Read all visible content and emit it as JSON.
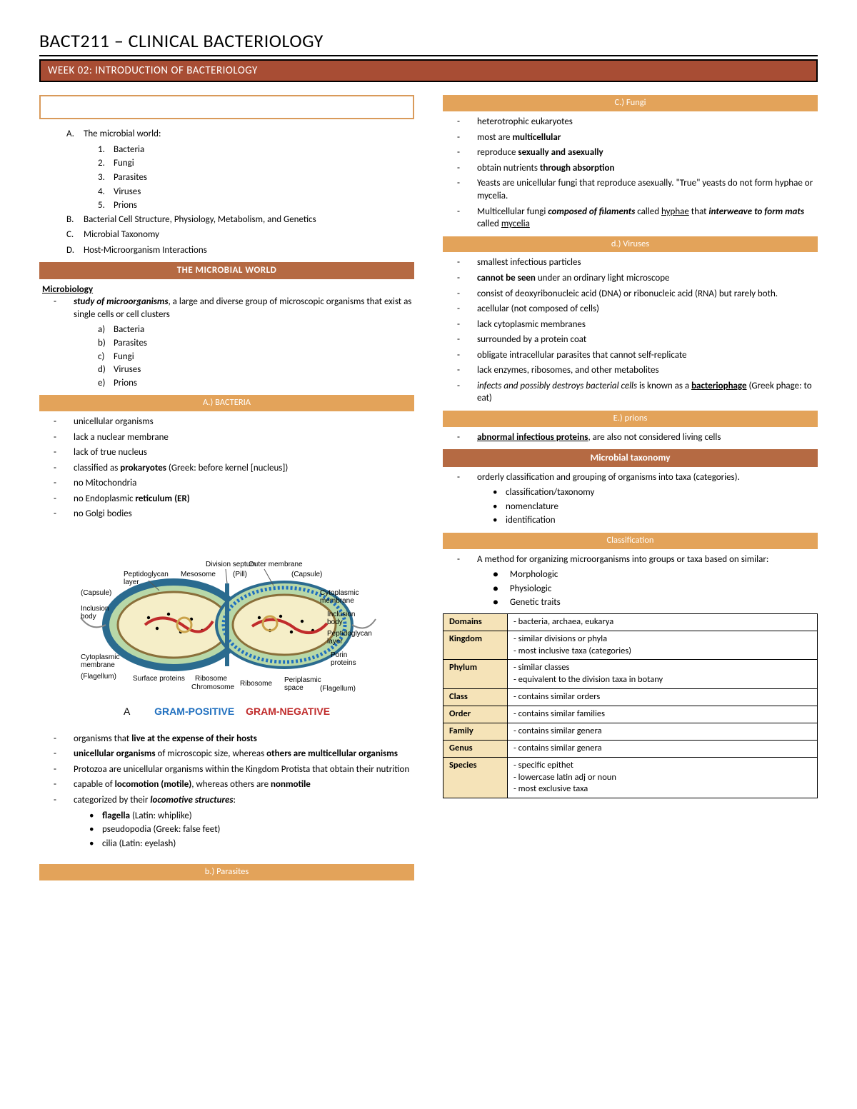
{
  "title": "BACT211 – CLINICAL BACTERIOLOGY",
  "week": "WEEK 02: INTRODUCTION OF BACTERIOLOGY",
  "outlineA": "The microbial world:",
  "outlineA_items": [
    "Bacteria",
    "Fungi",
    "Parasites",
    "Viruses",
    "Prions"
  ],
  "outlineB": "Bacterial Cell Structure, Physiology, Metabolism, and Genetics",
  "outlineC": "Microbial Taxonomy",
  "outlineD": "Host-Microorganism Interactions",
  "hdr_microbial": "THE MICROBIAL WORLD",
  "microbiology": "Microbiology",
  "micro_def_pre": "study of microorganisms",
  "micro_def_post": ", a large and diverse group of microscopic organisms that exist as single cells or cell clusters",
  "micro_list": [
    "Bacteria",
    "Parasites",
    "Fungi",
    "Viruses",
    "Prions"
  ],
  "hdr_bacteria": "A.) BACTERIA",
  "bact1": "unicellular organisms",
  "bact2": "lack a nuclear membrane",
  "bact3": "lack of true nucleus",
  "bact4a": "classified as ",
  "bact4b": "prokaryotes",
  "bact4c": " (Greek: before kernel [nucleus])",
  "bact5": "no Mitochondria",
  "bact6a": "no Endoplasmic ",
  "bact6b": "reticulum (ER)",
  "bact7": "no Golgi bodies",
  "diag_labels": {
    "division": "Division septum",
    "mesosome": "Mesosome",
    "pill": "(Pill)",
    "outer": "Outer membrane",
    "capsuleR": "(Capsule)",
    "pep": "Peptidoglycan",
    "layer": "layer",
    "capsuleL": "(Capsule)",
    "incl": "Inclusion",
    "body": "body",
    "cytomem": "Cytoplasmic",
    "membrane": "membrane",
    "flagL": "(Flagellum)",
    "surf": "Surface proteins",
    "ribo": "Ribosome",
    "chrom": "Chromosome",
    "porin": "Porin",
    "proteins": "proteins",
    "peri": "Periplasmic",
    "space": "space",
    "flagR": "(Flagellum)",
    "A": "A",
    "gp": "GRAM-POSITIVE",
    "gn": "GRAM-NEGATIVE"
  },
  "para1a": "organisms that ",
  "para1b": "live at the expense of their hosts",
  "para2a": "unicellular organisms",
  "para2b": " of microscopic size, whereas ",
  "para2c": "others are multicellular organisms",
  "para3": "Protozoa are unicellular organisms within the Kingdom Protista that obtain their nutrition",
  "para4a": "capable of ",
  "para4b": "locomotion (motile)",
  "para4c": ", whereas others are ",
  "para4d": "nonmotile",
  "para5a": "categorized by their ",
  "para5b": "locomotive structures",
  "para5c": ":",
  "loco1a": "flagella",
  "loco1b": " (Latin: whiplike)",
  "loco2": "pseudopodia (Greek: false feet)",
  "loco3": "cilia (Latin: eyelash)",
  "hdr_parasites": "b.) Parasites",
  "hdr_fungi": "C.) Fungi",
  "fun1": "heterotrophic eukaryotes",
  "fun2a": "most are ",
  "fun2b": "multicellular",
  "fun3a": "reproduce ",
  "fun3b": "sexually and asexually",
  "fun4a": "obtain nutrients ",
  "fun4b": "through absorption",
  "fun5": "Yeasts are unicellular fungi that reproduce asexually. \"True\" yeasts do not form hyphae or mycelia.",
  "fun6a": "Multicellular fungi ",
  "fun6b": "composed of filaments",
  "fun6c": " called ",
  "fun6d": "hyphae",
  "fun6e": " that ",
  "fun6f": "interweave to form mats",
  "fun6g": " called ",
  "fun6h": "mycelia",
  "hdr_virus": "d.) Viruses",
  "vir1": "smallest infectious particles",
  "vir2a": "cannot be seen",
  "vir2b": " under an ordinary light microscope",
  "vir3": "consist of deoxyribonucleic acid (DNA) or ribonucleic acid (RNA) but rarely both.",
  "vir4": "acellular (not composed of cells)",
  "vir5": "lack cytoplasmic membranes",
  "vir6": "surrounded by a protein coat",
  "vir7": "obligate intracellular parasites that cannot self-replicate",
  "vir8": "lack enzymes, ribosomes, and other metabolites",
  "vir9a": "infects and possibly destroys bacterial cells",
  "vir9b": " is known as a ",
  "vir9c": "bacteriophage",
  "vir9d": " (Greek phage: to eat)",
  "hdr_prions": "E.) prions",
  "pri1a": "abnormal infectious proteins",
  "pri1b": ", are also not considered living cells",
  "hdr_tax": "Microbial taxonomy",
  "tax1": "orderly classification and grouping of organisms into taxa (categories).",
  "tax_sub": [
    "classification/taxonomy",
    "nomenclature",
    "identification"
  ],
  "hdr_class": "Classification",
  "class1": "A method for organizing microorganisms into groups or taxa based on similar:",
  "class_sub": [
    "Morphologic",
    "Physiologic",
    "Genetic traits"
  ],
  "taxtable": [
    {
      "k": "Domains",
      "v": [
        "bacteria, archaea, eukarya"
      ]
    },
    {
      "k": "Kingdom",
      "v": [
        "similar divisions or phyla",
        "most inclusive taxa (categories)"
      ]
    },
    {
      "k": "Phylum",
      "v": [
        "similar classes",
        "equivalent to the division taxa in botany"
      ]
    },
    {
      "k": "Class",
      "v": [
        "contains similar orders"
      ]
    },
    {
      "k": "Order",
      "v": [
        "contains similar families"
      ]
    },
    {
      "k": "Family",
      "v": [
        "contains similar genera"
      ]
    },
    {
      "k": "Genus",
      "v": [
        "contains similar genera"
      ]
    },
    {
      "k": "Species",
      "v": [
        "specific epithet",
        "lowercase latin adj or noun",
        "most exclusive taxa"
      ]
    }
  ],
  "colors": {
    "brown_dark": "#a84d34",
    "brown_mid": "#b56a43",
    "orange": "#e3a35a",
    "cream": "#f5e3b8",
    "text": "#000000",
    "white": "#ffffff",
    "gp": "#1f6fbf",
    "gn": "#c02b2b"
  }
}
